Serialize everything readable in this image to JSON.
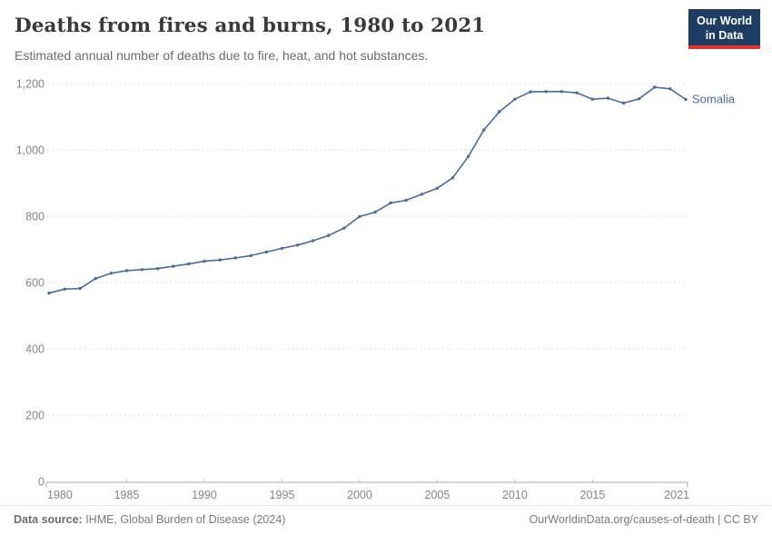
{
  "header": {
    "title": "Deaths from fires and burns, 1980 to 2021",
    "subtitle": "Estimated annual number of deaths due to fire, heat, and hot substances.",
    "logo": {
      "line1": "Our World",
      "line2": "in Data"
    }
  },
  "chart_data": {
    "type": "line",
    "title": "Deaths from fires and burns, 1980 to 2021",
    "xlabel": "",
    "ylabel": "",
    "entity_label": "Somalia",
    "line_color": "#4C6A9C",
    "xlim": [
      1980,
      2021
    ],
    "ylim": [
      0,
      1200
    ],
    "grid": "horizontal-dashed",
    "legend_position": "end-of-line-label",
    "x_ticks": [
      "1980",
      "1985",
      "1990",
      "1995",
      "2000",
      "2005",
      "2010",
      "2015",
      "2021"
    ],
    "x_tick_years": [
      1980,
      1985,
      1990,
      1995,
      2000,
      2005,
      2010,
      2015,
      2021
    ],
    "y_ticks": [
      "0",
      "200",
      "400",
      "600",
      "800",
      "1,000",
      "1,200"
    ],
    "y_tick_values": [
      0,
      200,
      400,
      600,
      800,
      1000,
      1200
    ],
    "series": [
      {
        "name": "Somalia",
        "x": [
          1980,
          1981,
          1982,
          1983,
          1984,
          1985,
          1986,
          1987,
          1988,
          1989,
          1990,
          1991,
          1992,
          1993,
          1994,
          1995,
          1996,
          1997,
          1998,
          1999,
          2000,
          2001,
          2002,
          2003,
          2004,
          2005,
          2006,
          2007,
          2008,
          2009,
          2010,
          2011,
          2012,
          2013,
          2014,
          2015,
          2016,
          2017,
          2018,
          2019,
          2020,
          2021
        ],
        "values": [
          568,
          580,
          582,
          612,
          628,
          636,
          639,
          642,
          649,
          656,
          664,
          668,
          674,
          681,
          692,
          703,
          713,
          726,
          742,
          764,
          799,
          812,
          840,
          848,
          866,
          884,
          916,
          980,
          1060,
          1115,
          1153,
          1175,
          1176,
          1176,
          1172,
          1153,
          1156,
          1141,
          1154,
          1189,
          1184,
          1152
        ]
      }
    ]
  },
  "footer": {
    "source_label": "Data source:",
    "source_value": " IHME, Global Burden of Disease (2024)",
    "credit": "OurWorldinData.org/causes-of-death | CC BY"
  },
  "colors": {
    "accent_line": "#4C6A9C",
    "logo_bg": "#1d3d63",
    "logo_underline": "#e0342c",
    "grid": "#dcdcdc",
    "axis": "#a7a7a7",
    "tick_text": "#858585",
    "title_text": "#3a3a3a",
    "subtitle_text": "#6b6b6b",
    "footer_text": "#7a7a7a"
  }
}
